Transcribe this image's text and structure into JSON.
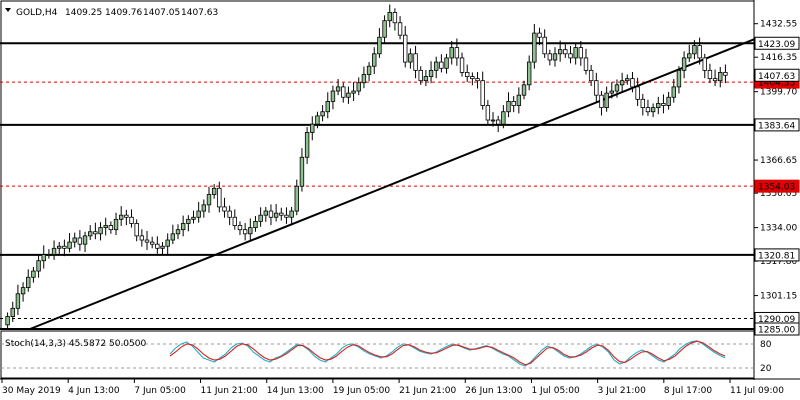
{
  "header": {
    "symbol": "GOLD,H4",
    "open": "1409.25",
    "high": "1409.76",
    "low": "1407.05",
    "close": "1407.63"
  },
  "colors": {
    "bull_fill": "#90c090",
    "bear_fill": "#ffffff",
    "candle_outline": "#000000",
    "support_line": "#000000",
    "red_level": "#e00000",
    "stoch_main": "#20b0c8",
    "stoch_signal": "#e02020"
  },
  "chart_data": [
    {
      "type": "candlestick",
      "title": "GOLD,H4",
      "ylim": [
        1285,
        1444
      ],
      "y_ticks": [
        "1432.55",
        "1416.35",
        "1399.70",
        "1366.65",
        "1350.65",
        "1334.00",
        "1317.80",
        "1301.15"
      ],
      "x_ticks": [
        "30 May 2019",
        "4 Jun 13:00",
        "7 Jun 05:00",
        "11 Jun 21:00",
        "14 Jun 13:00",
        "19 Jun 05:00",
        "21 Jun 21:00",
        "26 Jun 13:00",
        "1 Jul 05:00",
        "3 Jul 21:00",
        "8 Jul 17:00",
        "11 Jul 09:00"
      ],
      "horizontal_levels": [
        {
          "value": 1423.09,
          "label": "1423.09",
          "style": "solid-black",
          "boxed": "white"
        },
        {
          "value": 1404.33,
          "label": "1404.33",
          "style": "dashed-red",
          "boxed": "red"
        },
        {
          "value": 1383.64,
          "label": "1383.64",
          "style": "solid-black",
          "boxed": "white"
        },
        {
          "value": 1354.03,
          "label": "1354.03",
          "style": "dashed-red",
          "boxed": "red"
        },
        {
          "value": 1320.81,
          "label": "1320.81",
          "style": "solid-black",
          "boxed": "white"
        },
        {
          "value": 1290.09,
          "label": "1290.09",
          "style": "dashed-black",
          "boxed": "white"
        },
        {
          "value": 1285.0,
          "label": "1285.00",
          "style": "solid-black",
          "boxed": "white"
        }
      ],
      "current_price_label": "1407.63",
      "trendline": {
        "start": {
          "x": "30 May 2019",
          "y": 1285
        },
        "end": {
          "x": "11 Jul 09:00",
          "y": 1425
        }
      },
      "series": {
        "close": [
          1291,
          1295,
          1302,
          1305,
          1310,
          1313,
          1318,
          1321,
          1321,
          1324,
          1325,
          1324,
          1327,
          1329,
          1326,
          1330,
          1332,
          1331,
          1334,
          1335,
          1333,
          1338,
          1340,
          1339,
          1336,
          1330,
          1328,
          1327,
          1326,
          1324,
          1325,
          1328,
          1331,
          1333,
          1336,
          1338,
          1339,
          1342,
          1345,
          1350,
          1353,
          1344,
          1342,
          1339,
          1335,
          1333,
          1331,
          1334,
          1337,
          1340,
          1342,
          1339,
          1341,
          1340,
          1339,
          1342,
          1354,
          1368,
          1380,
          1384,
          1388,
          1390,
          1395,
          1400,
          1402,
          1397,
          1399,
          1400,
          1404,
          1408,
          1412,
          1418,
          1426,
          1434,
          1438,
          1433,
          1427,
          1414,
          1418,
          1410,
          1405,
          1407,
          1410,
          1414,
          1411,
          1416,
          1421,
          1416,
          1409,
          1407,
          1406,
          1405,
          1393,
          1386,
          1386,
          1384,
          1390,
          1395,
          1393,
          1398,
          1403,
          1414,
          1428,
          1426,
          1418,
          1415,
          1418,
          1420,
          1418,
          1416,
          1421,
          1416,
          1410,
          1405,
          1398,
          1392,
          1399,
          1400,
          1403,
          1405,
          1406,
          1402,
          1396,
          1392,
          1390,
          1392,
          1394,
          1393,
          1397,
          1402,
          1410,
          1416,
          1418,
          1422,
          1416,
          1410,
          1406,
          1405,
          1409,
          1407.63
        ]
      }
    },
    {
      "type": "line",
      "title": "Stoch(14,3,3) 45.5872 50.0500",
      "ylim": [
        0,
        100
      ],
      "y_ticks": [
        "80",
        "20"
      ],
      "series": [
        {
          "name": "main",
          "values": [
            55,
            70,
            80,
            85,
            75,
            60,
            45,
            40,
            35,
            45,
            55,
            70,
            80,
            82,
            75,
            60,
            50,
            40,
            35,
            45,
            50,
            60,
            70,
            80,
            75,
            65,
            50,
            40,
            35,
            45,
            55,
            70,
            78,
            80,
            72,
            62,
            55,
            50,
            45,
            50,
            60,
            72,
            80,
            78,
            70,
            62,
            58,
            55,
            60,
            68,
            75,
            80,
            76,
            70,
            65,
            68,
            72,
            76,
            70,
            62,
            55,
            50,
            40,
            30,
            25,
            35,
            50,
            65,
            75,
            70,
            60,
            50,
            45,
            48,
            55,
            65,
            75,
            80,
            72,
            60,
            40,
            30,
            35,
            48,
            58,
            65,
            60,
            50,
            40,
            35,
            45,
            55,
            70,
            80,
            86,
            88,
            80,
            70,
            60,
            52,
            45.59
          ]
        },
        {
          "name": "signal",
          "values": [
            50,
            60,
            72,
            80,
            78,
            68,
            55,
            45,
            40,
            42,
            50,
            62,
            74,
            80,
            78,
            68,
            56,
            46,
            40,
            42,
            48,
            56,
            66,
            76,
            76,
            68,
            56,
            46,
            40,
            42,
            50,
            62,
            72,
            78,
            75,
            66,
            58,
            52,
            48,
            48,
            55,
            66,
            76,
            78,
            73,
            65,
            60,
            57,
            58,
            64,
            71,
            77,
            77,
            72,
            67,
            67,
            70,
            74,
            72,
            65,
            58,
            52,
            45,
            35,
            28,
            32,
            45,
            58,
            70,
            71,
            64,
            54,
            48,
            48,
            52,
            60,
            70,
            77,
            75,
            64,
            48,
            36,
            34,
            42,
            52,
            60,
            61,
            54,
            45,
            38,
            42,
            50,
            63,
            75,
            83,
            87,
            83,
            74,
            64,
            56,
            50.05
          ]
        }
      ]
    }
  ]
}
